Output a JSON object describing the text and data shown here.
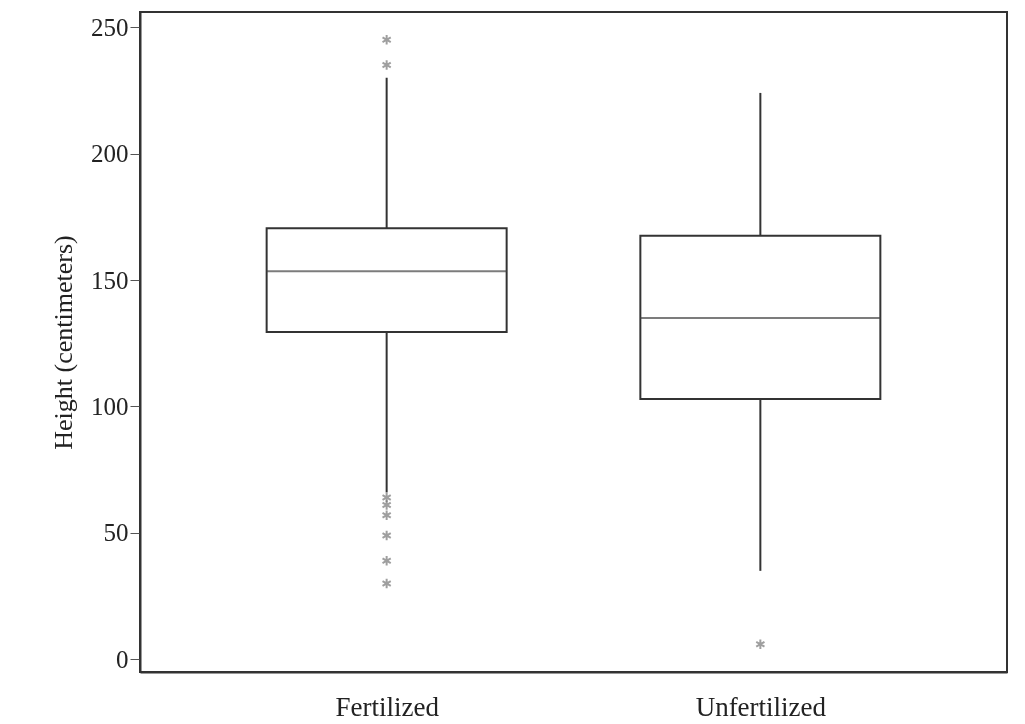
{
  "chart_data": {
    "type": "box",
    "ylabel": "Height (centimeters)",
    "categories": [
      "Fertilized",
      "Unfertilized"
    ],
    "boxes": [
      {
        "low": 66,
        "q1": 129.5,
        "median": 153.5,
        "q3": 170.5,
        "high": 230,
        "outliers": [
          245,
          235,
          64,
          61,
          57,
          49,
          39,
          30
        ]
      },
      {
        "low": 35,
        "q1": 103,
        "median": 135,
        "q3": 167.5,
        "high": 224,
        "outliers": [
          6
        ]
      }
    ],
    "ylim": [
      -5,
      256
    ],
    "yticks": [
      0,
      50,
      100,
      150,
      200,
      250
    ],
    "grid": false
  }
}
